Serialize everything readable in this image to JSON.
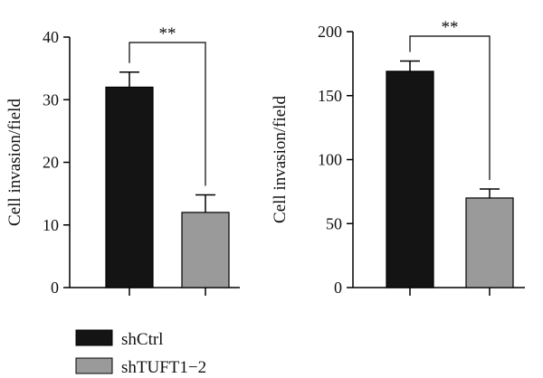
{
  "chart_data": [
    {
      "type": "bar",
      "categories": [
        "shCtrl",
        "shTUFT1−2"
      ],
      "values": [
        32,
        12
      ],
      "errors": [
        2.4,
        2.8
      ],
      "ylabel": "Cell invasion/field",
      "ylim": [
        0,
        40
      ],
      "yticks": [
        0,
        10,
        20,
        30,
        40
      ],
      "significance": "**",
      "colors": [
        "#141414",
        "#9a9a9a"
      ],
      "grid": false
    },
    {
      "type": "bar",
      "categories": [
        "shCtrl",
        "shTUFT1−2"
      ],
      "values": [
        169,
        70
      ],
      "errors": [
        8,
        7
      ],
      "ylabel": "Cell invasion/field",
      "ylim": [
        0,
        200
      ],
      "yticks": [
        0,
        50,
        100,
        150,
        200
      ],
      "significance": "**",
      "colors": [
        "#141414",
        "#9a9a9a"
      ],
      "grid": false
    }
  ],
  "legend": {
    "placement": "bottom-left",
    "items": [
      {
        "label": "shCtrl",
        "color": "#141414"
      },
      {
        "label": "shTUFT1−2",
        "color": "#9a9a9a"
      }
    ]
  }
}
